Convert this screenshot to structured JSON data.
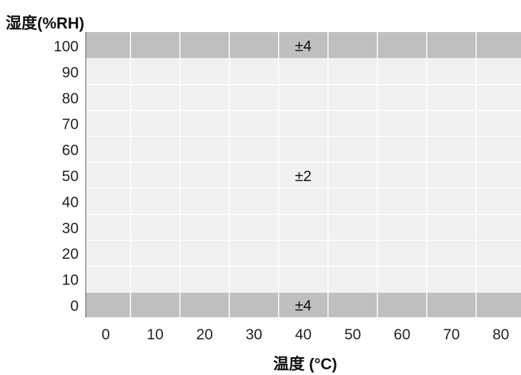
{
  "chart_data": {
    "type": "heatmap",
    "title": "",
    "xlabel": "温度 (°C)",
    "ylabel": "湿度(%RH)",
    "x_ticks": [
      0,
      10,
      20,
      30,
      40,
      50,
      60,
      70,
      80
    ],
    "y_ticks": [
      100,
      90,
      80,
      70,
      60,
      50,
      40,
      30,
      20,
      10,
      0
    ],
    "grid": true,
    "zones": [
      {
        "label": "±4",
        "y_range": [
          95,
          100
        ],
        "x_range": [
          -5,
          85
        ],
        "color": "#bfbfbf"
      },
      {
        "label": "±2",
        "y_range": [
          5,
          95
        ],
        "x_range": [
          -5,
          85
        ],
        "color": "#f0f0f0"
      },
      {
        "label": "±4",
        "y_range": [
          0,
          5
        ],
        "x_range": [
          -5,
          85
        ],
        "color": "#bfbfbf"
      }
    ]
  }
}
